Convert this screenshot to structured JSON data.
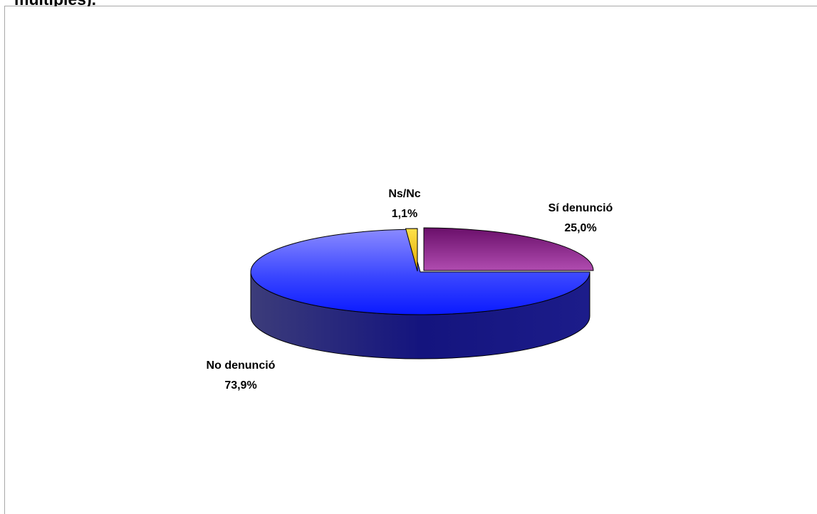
{
  "title_fragment": "multiples).",
  "chart_data": {
    "type": "pie",
    "three_d": true,
    "slices": [
      {
        "label": "Sí denunció",
        "value": 25.0,
        "value_label": "25,0%",
        "color": "#993399"
      },
      {
        "label": "No denunció",
        "value": 73.9,
        "value_label": "73,9%",
        "color": "#3333ff"
      },
      {
        "label": "Ns/Nc",
        "value": 1.1,
        "value_label": "1,1%",
        "color": "#ffcc00"
      }
    ],
    "legend": "none",
    "title": "multiples)."
  }
}
